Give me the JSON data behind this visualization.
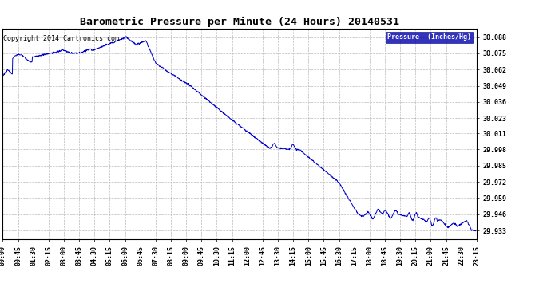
{
  "title": "Barometric Pressure per Minute (24 Hours) 20140531",
  "copyright_text": "Copyright 2014 Cartronics.com",
  "legend_label": "Pressure  (Inches/Hg)",
  "line_color": "#0000cc",
  "background_color": "#ffffff",
  "plot_bg_color": "#ffffff",
  "grid_color": "#aaaaaa",
  "legend_bg_color": "#0000aa",
  "legend_text_color": "#ffffff",
  "y_ticks": [
    29.933,
    29.946,
    29.959,
    29.972,
    29.985,
    29.998,
    30.011,
    30.023,
    30.036,
    30.049,
    30.062,
    30.075,
    30.088
  ],
  "ylim": [
    29.926,
    30.095
  ],
  "x_tick_labels": [
    "00:00",
    "00:45",
    "01:30",
    "02:15",
    "03:00",
    "03:45",
    "04:30",
    "05:15",
    "06:00",
    "06:45",
    "07:30",
    "08:15",
    "09:00",
    "09:45",
    "10:30",
    "11:15",
    "12:00",
    "12:45",
    "13:30",
    "14:15",
    "15:00",
    "15:45",
    "16:30",
    "17:15",
    "18:00",
    "18:45",
    "19:30",
    "20:15",
    "21:00",
    "21:45",
    "22:30",
    "23:15"
  ],
  "title_fontsize": 9.5,
  "tick_fontsize": 6.0,
  "copyright_fontsize": 6.0
}
